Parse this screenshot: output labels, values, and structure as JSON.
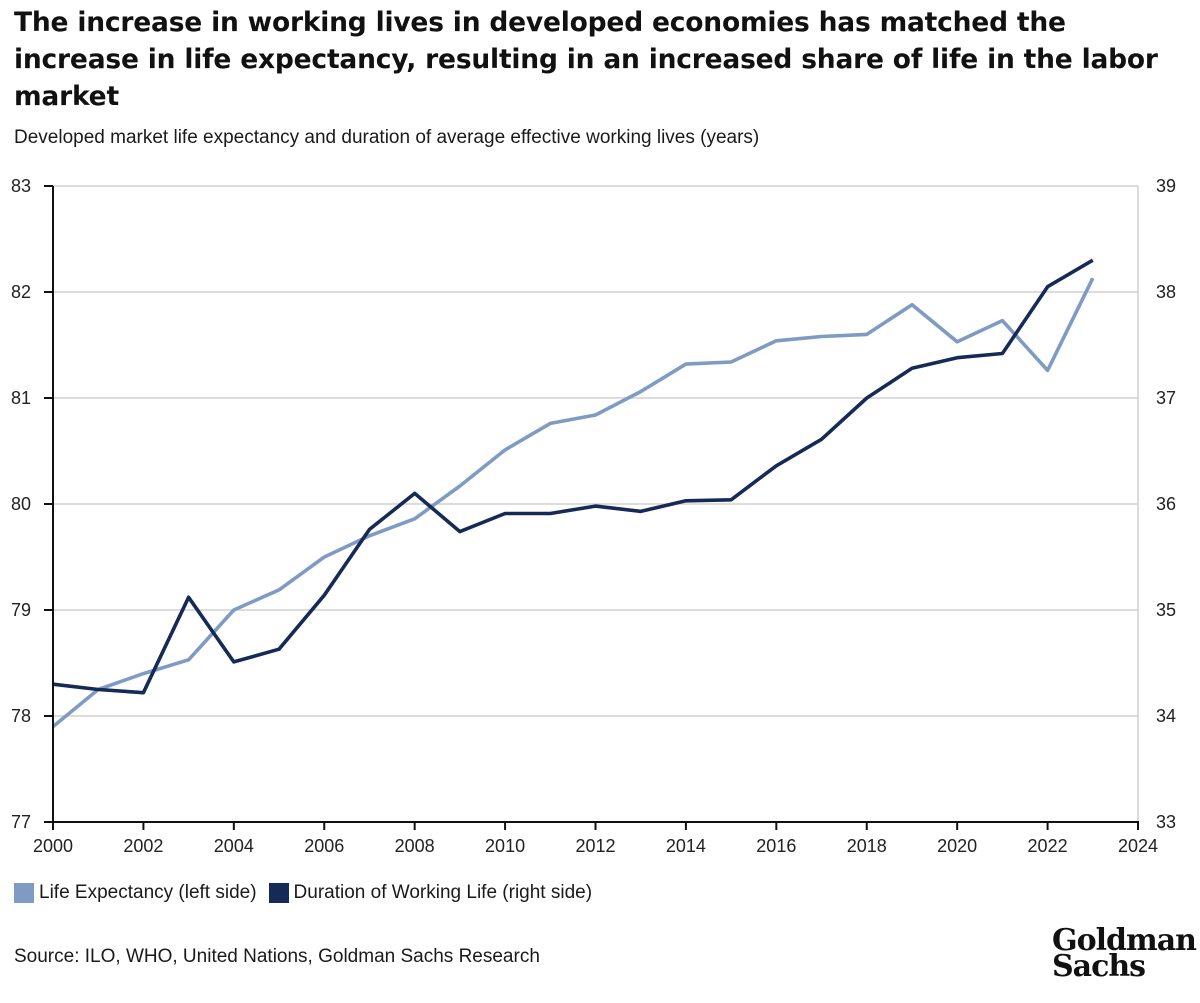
{
  "header": {
    "title": "The increase in working lives in developed economies has matched the increase in life expectancy, resulting in an increased share of life in the labor market",
    "subtitle": "Developed market life expectancy and duration of average effective working lives (years)"
  },
  "footer": {
    "source": "Source: ILO, WHO, United Nations, Goldman Sachs Research",
    "logo_line1": "Goldman",
    "logo_line2": "Sachs"
  },
  "colors": {
    "life_expectancy": "#7f9bc4",
    "working_life": "#162a56",
    "grid": "#d0d0d0",
    "axis": "#111111"
  },
  "chart_data": {
    "type": "line",
    "xlim": [
      2000,
      2024
    ],
    "x_ticks": [
      "2000",
      "2002",
      "2004",
      "2006",
      "2008",
      "2010",
      "2012",
      "2014",
      "2016",
      "2018",
      "2020",
      "2022",
      "2024"
    ],
    "ylim_left": [
      77,
      83
    ],
    "y_ticks_left": [
      "77",
      "78",
      "79",
      "80",
      "81",
      "82",
      "83"
    ],
    "ylim_right": [
      33,
      39
    ],
    "y_ticks_right": [
      "33",
      "34",
      "35",
      "36",
      "37",
      "38",
      "39"
    ],
    "grid": true,
    "legend_position": "bottom-left",
    "series": [
      {
        "name": "Life Expectancy (left side)",
        "axis": "left",
        "x": [
          2000,
          2001,
          2002,
          2003,
          2004,
          2005,
          2006,
          2007,
          2008,
          2009,
          2010,
          2011,
          2012,
          2013,
          2014,
          2015,
          2016,
          2017,
          2018,
          2019,
          2020,
          2021,
          2022,
          2023
        ],
        "values": [
          77.9,
          78.25,
          78.4,
          78.53,
          79.0,
          79.19,
          79.5,
          79.7,
          79.86,
          80.17,
          80.51,
          80.76,
          80.84,
          81.06,
          81.32,
          81.34,
          81.54,
          81.58,
          81.6,
          81.88,
          81.53,
          81.73,
          81.26,
          82.13
        ]
      },
      {
        "name": "Duration of Working Life (right side)",
        "axis": "right",
        "x": [
          2000,
          2001,
          2002,
          2003,
          2004,
          2005,
          2006,
          2007,
          2008,
          2009,
          2010,
          2011,
          2012,
          2013,
          2014,
          2015,
          2016,
          2017,
          2018,
          2019,
          2020,
          2021,
          2022,
          2023
        ],
        "values": [
          34.3,
          34.25,
          34.22,
          35.12,
          34.51,
          34.63,
          35.14,
          35.76,
          36.1,
          35.74,
          35.91,
          35.91,
          35.98,
          35.93,
          36.03,
          36.04,
          36.36,
          36.61,
          37.0,
          37.28,
          37.38,
          37.42,
          38.05,
          38.3
        ]
      }
    ]
  }
}
